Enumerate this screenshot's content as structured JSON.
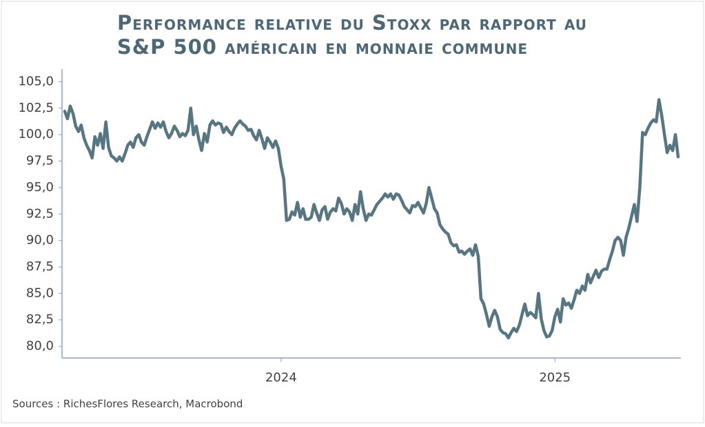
{
  "chart_data": {
    "type": "line",
    "title": [
      "Performance relative du Stoxx par rapport au",
      "S&P 500 américain en monnaie commune"
    ],
    "source": "Sources : RichesFlores Research, Macrobond",
    "x": [
      2023.21,
      2023.22,
      2023.23,
      2023.24,
      2023.25,
      2023.26,
      2023.27,
      2023.28,
      2023.29,
      2023.3,
      2023.31,
      2023.32,
      2023.33,
      2023.34,
      2023.35,
      2023.36,
      2023.37,
      2023.38,
      2023.39,
      2023.4,
      2023.41,
      2023.42,
      2023.43,
      2023.44,
      2023.45,
      2023.46,
      2023.47,
      2023.48,
      2023.49,
      2023.5,
      2023.51,
      2023.52,
      2023.53,
      2023.54,
      2023.55,
      2023.56,
      2023.57,
      2023.58,
      2023.59,
      2023.6,
      2023.61,
      2023.62,
      2023.63,
      2023.64,
      2023.65,
      2023.66,
      2023.67,
      2023.68,
      2023.69,
      2023.7,
      2023.71,
      2023.72,
      2023.73,
      2023.74,
      2023.75,
      2023.76,
      2023.77,
      2023.78,
      2023.79,
      2023.8,
      2023.81,
      2023.82,
      2023.83,
      2023.84,
      2023.85,
      2023.86,
      2023.87,
      2023.88,
      2023.89,
      2023.9,
      2023.91,
      2023.92,
      2023.93,
      2023.94,
      2023.95,
      2023.96,
      2023.97,
      2023.98,
      2023.99,
      2024.0,
      2024.01,
      2024.02,
      2024.03,
      2024.04,
      2024.05,
      2024.06,
      2024.07,
      2024.08,
      2024.09,
      2024.1,
      2024.11,
      2024.12,
      2024.13,
      2024.14,
      2024.15,
      2024.16,
      2024.17,
      2024.18,
      2024.19,
      2024.2,
      2024.21,
      2024.22,
      2024.23,
      2024.24,
      2024.25,
      2024.26,
      2024.27,
      2024.28,
      2024.29,
      2024.3,
      2024.31,
      2024.32,
      2024.33,
      2024.34,
      2024.35,
      2024.36,
      2024.37,
      2024.38,
      2024.39,
      2024.4,
      2024.41,
      2024.42,
      2024.43,
      2024.44,
      2024.45,
      2024.46,
      2024.47,
      2024.48,
      2024.49,
      2024.5,
      2024.51,
      2024.52,
      2024.53,
      2024.54,
      2024.55,
      2024.56,
      2024.57,
      2024.58,
      2024.59,
      2024.6,
      2024.61,
      2024.62,
      2024.63,
      2024.64,
      2024.65,
      2024.66,
      2024.67,
      2024.68,
      2024.69,
      2024.7,
      2024.71,
      2024.72,
      2024.73,
      2024.74,
      2024.75,
      2024.76,
      2024.77,
      2024.78,
      2024.79,
      2024.8,
      2024.81,
      2024.82,
      2024.83,
      2024.84,
      2024.85,
      2024.86,
      2024.87,
      2024.88,
      2024.89,
      2024.9,
      2024.91,
      2024.92,
      2024.93,
      2024.94,
      2024.95,
      2024.96,
      2024.97,
      2024.98,
      2024.99,
      2025.0,
      2025.01,
      2025.02,
      2025.03,
      2025.04,
      2025.05,
      2025.06,
      2025.07,
      2025.08,
      2025.09,
      2025.1,
      2025.11,
      2025.12,
      2025.13,
      2025.14,
      2025.15,
      2025.16,
      2025.17,
      2025.18,
      2025.19,
      2025.2,
      2025.21,
      2025.22,
      2025.23,
      2025.24,
      2025.25,
      2025.26,
      2025.27,
      2025.28,
      2025.29,
      2025.3,
      2025.31,
      2025.32,
      2025.33,
      2025.34,
      2025.35,
      2025.36,
      2025.37,
      2025.38,
      2025.39,
      2025.4,
      2025.41,
      2025.42,
      2025.43,
      2025.44,
      2025.45
    ],
    "series": [
      {
        "color": "#587682",
        "values": [
          102.2,
          101.5,
          102.7,
          102.0,
          100.8,
          100.3,
          100.9,
          99.7,
          99.0,
          98.5,
          97.8,
          99.8,
          99.0,
          100.1,
          98.7,
          101.2,
          98.8,
          98.0,
          97.8,
          97.5,
          97.9,
          97.5,
          98.2,
          99.0,
          99.3,
          98.8,
          99.7,
          100.0,
          99.3,
          99.0,
          99.8,
          100.5,
          101.2,
          100.6,
          101.1,
          100.7,
          101.2,
          100.3,
          99.7,
          100.1,
          100.8,
          100.4,
          99.8,
          100.1,
          99.9,
          100.4,
          102.5,
          100.0,
          100.8,
          99.5,
          98.5,
          100.1,
          99.3,
          100.9,
          101.3,
          100.9,
          101.1,
          101.0,
          100.2,
          100.7,
          100.3,
          100.0,
          100.6,
          101.0,
          101.3,
          101.0,
          100.8,
          100.4,
          100.5,
          99.9,
          99.5,
          100.4,
          99.6,
          98.7,
          99.7,
          99.3,
          98.8,
          99.4,
          98.7,
          97.0,
          95.8,
          91.9,
          92.0,
          92.7,
          92.4,
          93.6,
          92.2,
          93.0,
          92.0,
          92.0,
          92.2,
          93.4,
          92.6,
          91.9,
          92.9,
          93.2,
          92.0,
          92.7,
          93.0,
          92.8,
          94.0,
          93.5,
          92.5,
          93.0,
          92.7,
          91.9,
          93.4,
          92.5,
          94.6,
          93.0,
          91.9,
          92.5,
          92.4,
          92.9,
          93.4,
          93.7,
          94.0,
          94.4,
          94.1,
          94.4,
          93.9,
          94.4,
          94.3,
          93.8,
          93.2,
          92.9,
          92.6,
          93.3,
          93.2,
          93.6,
          93.1,
          92.6,
          93.5,
          95.0,
          94.0,
          93.0,
          92.6,
          91.5,
          91.1,
          90.8,
          90.6,
          89.8,
          89.5,
          89.6,
          88.9,
          89.0,
          88.7,
          89.0,
          89.2,
          88.6,
          89.6,
          88.5,
          84.5,
          84.0,
          83.0,
          81.9,
          82.8,
          83.4,
          82.8,
          81.6,
          81.3,
          81.2,
          80.8,
          81.3,
          81.7,
          81.4,
          82.0,
          83.0,
          84.0,
          82.9,
          83.2,
          83.0,
          82.7,
          85.0,
          82.6,
          81.5,
          80.9,
          81.0,
          81.5,
          82.8,
          83.5,
          82.3,
          84.5,
          83.9,
          84.1,
          83.6,
          84.4,
          85.3,
          85.0,
          85.7,
          85.3,
          86.8,
          86.0,
          86.6,
          87.2,
          86.5,
          87.1,
          87.3,
          87.3,
          88.2,
          89.0,
          90.0,
          90.3,
          90.0,
          88.6,
          90.3,
          91.2,
          92.3,
          93.4,
          91.8,
          95.0,
          100.2,
          100.0,
          100.6,
          101.1,
          101.4,
          101.2,
          103.3,
          101.8,
          100.0,
          98.3,
          99.0,
          98.5,
          100.0,
          97.9
        ]
      }
    ],
    "xlim": [
      2023.2,
      2025.46
    ],
    "xticks": [
      2024,
      2025
    ],
    "ylim": [
      78.9,
      106.2
    ],
    "yticks": [
      {
        "value": 80,
        "label": "80,0"
      },
      {
        "value": 82.5,
        "label": "82,5"
      },
      {
        "value": 85,
        "label": "85,0"
      },
      {
        "value": 87.5,
        "label": "87,5"
      },
      {
        "value": 90,
        "label": "90,0"
      },
      {
        "value": 92.5,
        "label": "92,5"
      },
      {
        "value": 95,
        "label": "95,0"
      },
      {
        "value": 97.5,
        "label": "97,5"
      },
      {
        "value": 100,
        "label": "100,0"
      },
      {
        "value": 102.5,
        "label": "102,5"
      },
      {
        "value": 105,
        "label": "105,0"
      }
    ],
    "grid": false
  }
}
